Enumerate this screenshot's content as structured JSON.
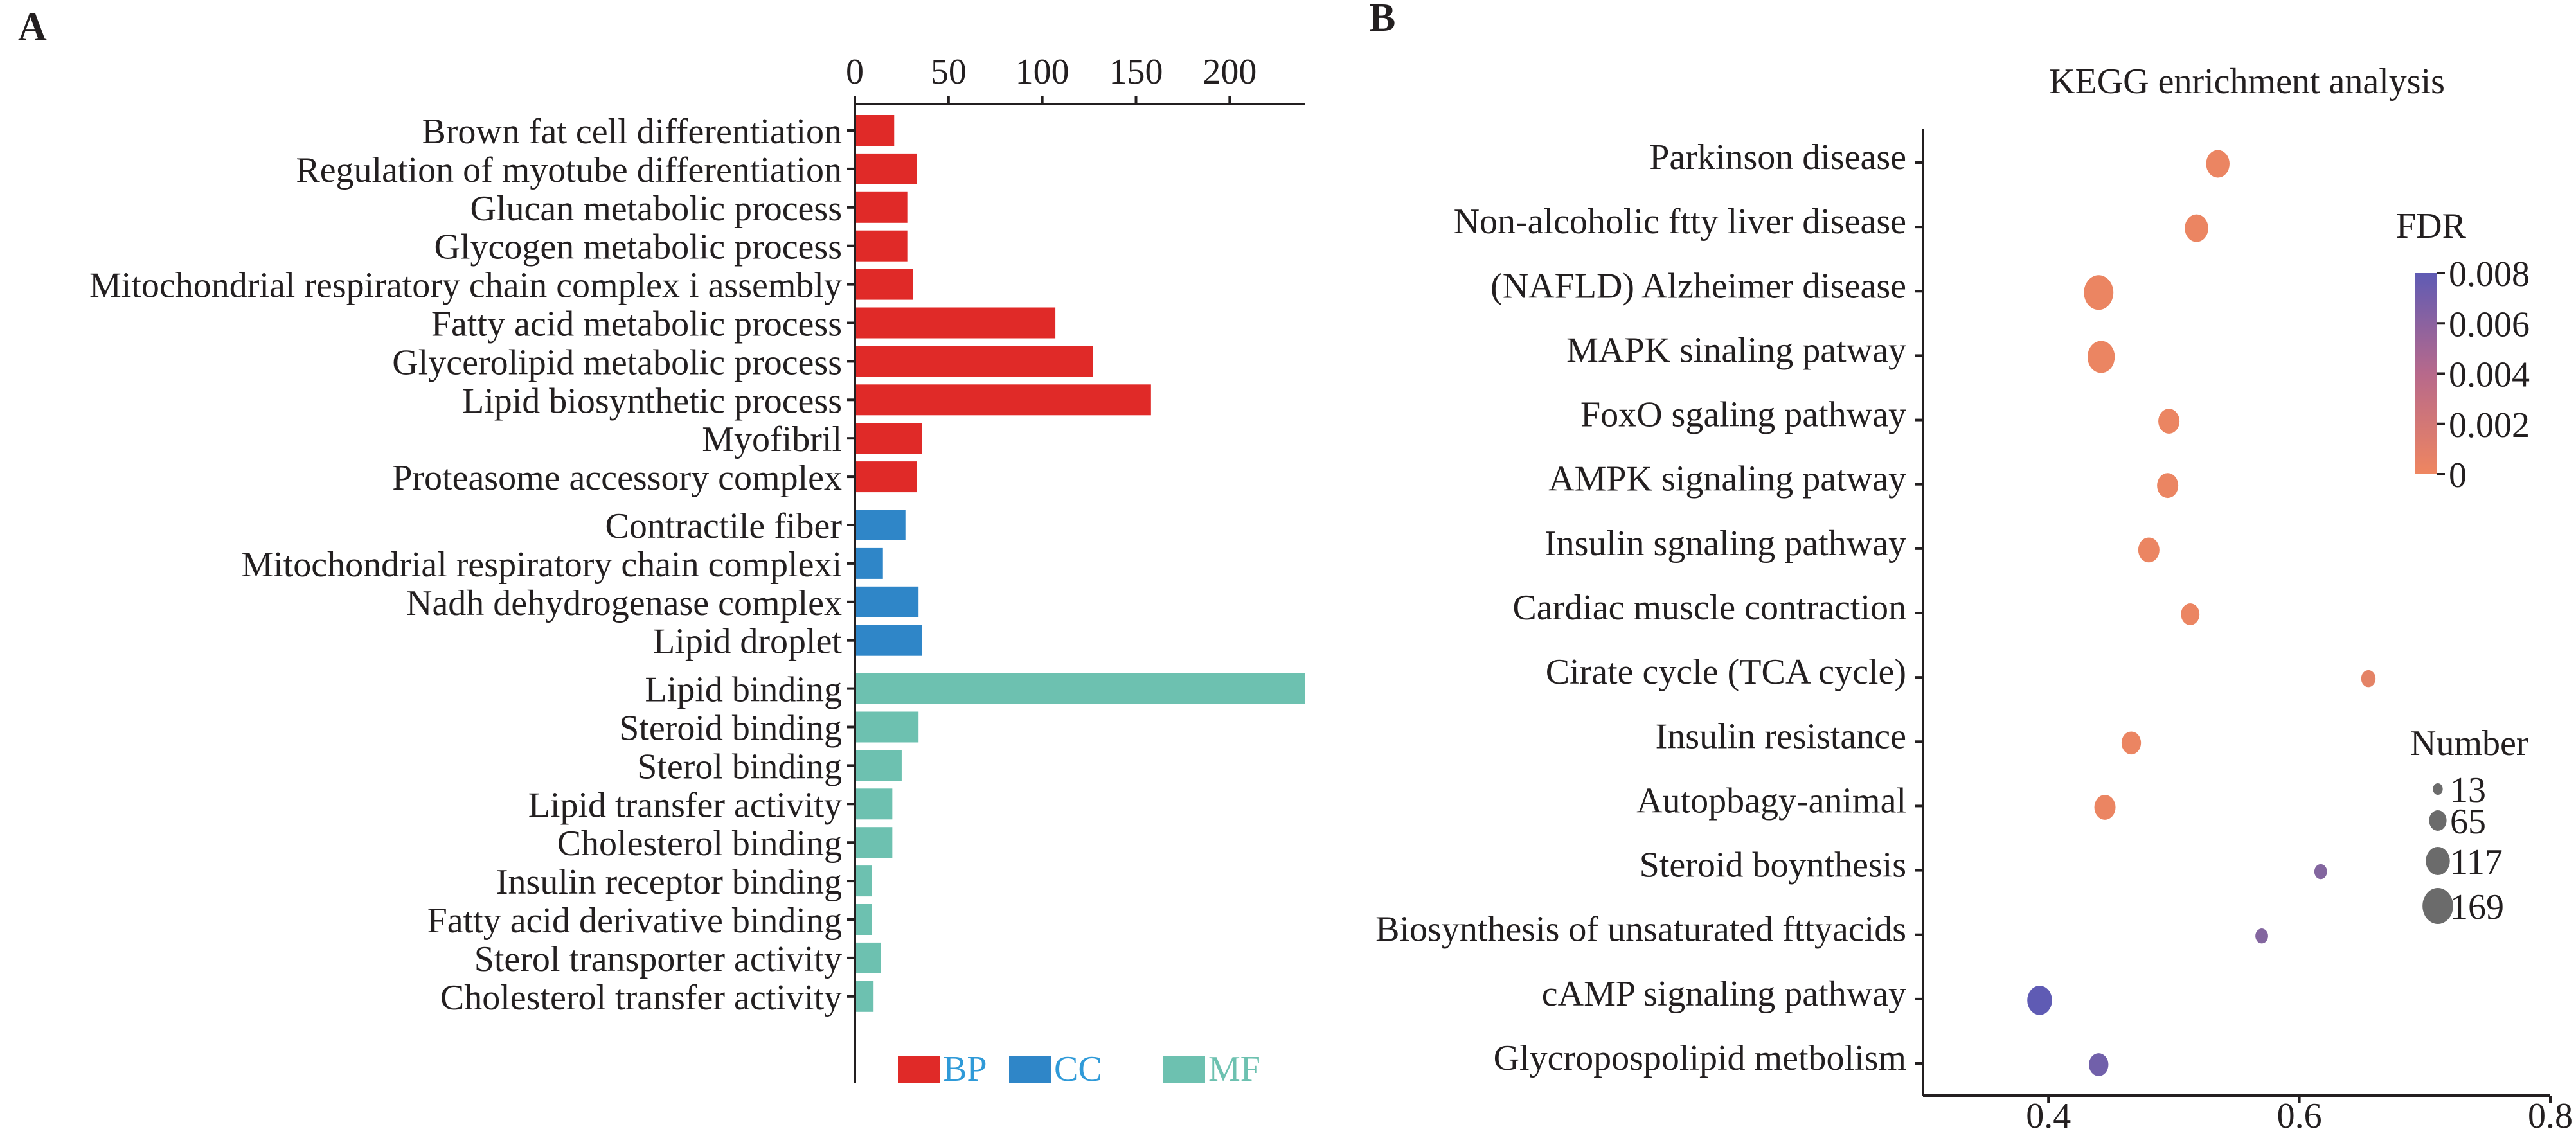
{
  "panels": {
    "a_label": "A",
    "b_label": "B"
  },
  "colors": {
    "BP": "#e02a28",
    "CC": "#2f86c8",
    "MF": "#6dc1b0",
    "axis": "#231f20",
    "bp_text": "#2f9ad8",
    "cc_text": "#2f9ad8",
    "mf_text": "#6dc1b0"
  },
  "chart_data": [
    {
      "type": "bar",
      "orientation": "horizontal",
      "xlim": [
        0,
        240
      ],
      "x_ticks": [
        "0",
        "50",
        "100",
        "150",
        "200"
      ],
      "x_tick_values": [
        0,
        50,
        100,
        150,
        200
      ],
      "legend": [
        {
          "key": "BP",
          "label": "BP"
        },
        {
          "key": "CC",
          "label": "CC"
        },
        {
          "key": "MF",
          "label": "MF"
        }
      ],
      "legend_placement": "bottom-right",
      "categories": [
        {
          "label": "Brown fat cell differentiation",
          "value": 21,
          "group": "BP"
        },
        {
          "label": "Regulation of myotube differentiation",
          "value": 33,
          "group": "BP"
        },
        {
          "label": "Glucan metabolic process",
          "value": 28,
          "group": "BP"
        },
        {
          "label": "Glycogen metabolic process",
          "value": 28,
          "group": "BP"
        },
        {
          "label": "Mitochondrial respiratory chain complex i assembly",
          "value": 31,
          "group": "BP"
        },
        {
          "label": "Fatty acid metabolic process",
          "value": 107,
          "group": "BP"
        },
        {
          "label": "Glycerolipid metabolic process",
          "value": 127,
          "group": "BP"
        },
        {
          "label": "Lipid biosynthetic process",
          "value": 158,
          "group": "BP"
        },
        {
          "label": "Myofibril",
          "value": 36,
          "group": "BP"
        },
        {
          "label": "Proteasome accessory complex",
          "value": 33,
          "group": "BP"
        },
        {
          "label": "Contractile fiber",
          "value": 27,
          "group": "CC"
        },
        {
          "label": "Mitochondrial respiratory chain complexi",
          "value": 15,
          "group": "CC"
        },
        {
          "label": "Nadh dehydrogenase complex",
          "value": 34,
          "group": "CC"
        },
        {
          "label": "Lipid droplet",
          "value": 36,
          "group": "CC"
        },
        {
          "label": "Lipid binding",
          "value": 240,
          "group": "MF"
        },
        {
          "label": "Steroid binding",
          "value": 34,
          "group": "MF"
        },
        {
          "label": "Sterol binding",
          "value": 25,
          "group": "MF"
        },
        {
          "label": "Lipid transfer activity",
          "value": 20,
          "group": "MF"
        },
        {
          "label": "Cholesterol binding",
          "value": 20,
          "group": "MF"
        },
        {
          "label": "Insulin receptor binding",
          "value": 9,
          "group": "MF"
        },
        {
          "label": "Fatty acid derivative binding",
          "value": 9,
          "group": "MF"
        },
        {
          "label": "Sterol transporter activity",
          "value": 14,
          "group": "MF"
        },
        {
          "label": "Cholesterol transfer activity",
          "value": 10,
          "group": "MF"
        }
      ]
    },
    {
      "type": "scatter",
      "title": "KEGG enrichment analysis",
      "xlim": [
        0.3,
        0.8
      ],
      "x_ticks": [
        "0.4",
        "0.6",
        "0.8"
      ],
      "x_tick_values": [
        0.4,
        0.6,
        0.8
      ],
      "fdr_legend": {
        "title": "FDR",
        "range": [
          0,
          0.008
        ],
        "ticks": [
          "0.008",
          "0.006",
          "0.004",
          "0.002",
          "0"
        ],
        "tick_values": [
          0.008,
          0.006,
          0.004,
          0.002,
          0
        ],
        "color_low": "#ef8660",
        "color_high": "#5f5bb4"
      },
      "size_legend": {
        "title": "Number",
        "ticks": [
          "13",
          "65",
          "117",
          "169"
        ],
        "tick_values": [
          13,
          65,
          117,
          169
        ]
      },
      "legend_placement": "right",
      "points": [
        {
          "label": "Parkinson disease",
          "x": 0.535,
          "size": 60,
          "fdr": 0.0002
        },
        {
          "label": "Non-alcoholic ftty liver disease",
          "x": 0.518,
          "size": 60,
          "fdr": 0.0002
        },
        {
          "label": "(NAFLD) Alzheimer disease",
          "x": 0.44,
          "size": 110,
          "fdr": 0.0002
        },
        {
          "label": "MAPK sinaling patway",
          "x": 0.442,
          "size": 90,
          "fdr": 0.0002
        },
        {
          "label": "FoxO sgaling pathway",
          "x": 0.496,
          "size": 45,
          "fdr": 0.0002
        },
        {
          "label": "AMPK signaling patway",
          "x": 0.495,
          "size": 45,
          "fdr": 0.0002
        },
        {
          "label": "Insulin sgnaling pathway",
          "x": 0.48,
          "size": 45,
          "fdr": 0.0002
        },
        {
          "label": "Cardiac muscle contraction",
          "x": 0.513,
          "size": 30,
          "fdr": 0.0002
        },
        {
          "label": "Cirate cycle (TCA cycle)",
          "x": 0.655,
          "size": 13,
          "fdr": 0.0006
        },
        {
          "label": "Insulin resistance",
          "x": 0.466,
          "size": 35,
          "fdr": 0.0002
        },
        {
          "label": "Autopbagy-animal",
          "x": 0.445,
          "size": 45,
          "fdr": 0.0002
        },
        {
          "label": "Steroid boynthesis",
          "x": 0.617,
          "size": 8,
          "fdr": 0.006
        },
        {
          "label": "Biosynthesis of unsaturated fttyacids",
          "x": 0.57,
          "size": 8,
          "fdr": 0.006
        },
        {
          "label": "cAMP signaling pathway",
          "x": 0.393,
          "size": 70,
          "fdr": 0.008
        },
        {
          "label": "Glycropospolipid metbolism",
          "x": 0.44,
          "size": 35,
          "fdr": 0.007
        }
      ]
    }
  ]
}
